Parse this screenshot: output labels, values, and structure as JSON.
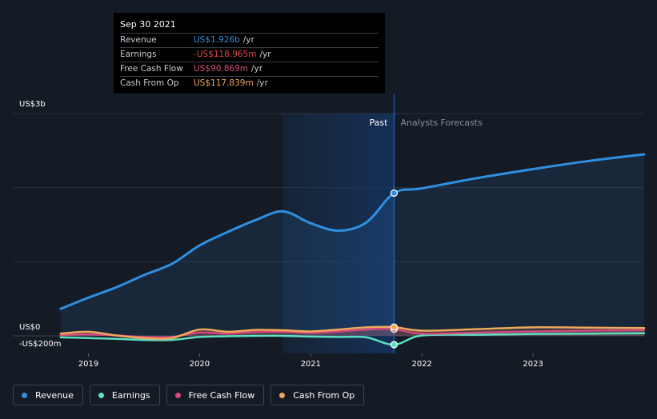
{
  "chart_data": {
    "type": "line",
    "x_unit": "year",
    "xlim": [
      2018.55,
      2024.0
    ],
    "ylim": [
      -200,
      3000
    ],
    "y_unit": "US$m",
    "y_tick_labels": [
      {
        "value": 3000,
        "label": "US$3b"
      },
      {
        "value": 0,
        "label": "US$0"
      },
      {
        "value": -200,
        "label": "-US$200m"
      }
    ],
    "x_tick_labels": [
      {
        "value": 2019,
        "label": "2019"
      },
      {
        "value": 2020,
        "label": "2020"
      },
      {
        "value": 2021,
        "label": "2021"
      },
      {
        "value": 2022,
        "label": "2022"
      },
      {
        "value": 2023,
        "label": "2023"
      }
    ],
    "past_label": "Past",
    "forecast_label": "Analysts Forecasts",
    "divider_x": 2021.75,
    "highlight_start_x": 2020.75,
    "series": [
      {
        "name": "Revenue",
        "color": "#2f8fe0",
        "values": [
          [
            2018.75,
            365
          ],
          [
            2019.0,
            515
          ],
          [
            2019.25,
            655
          ],
          [
            2019.5,
            820
          ],
          [
            2019.75,
            970
          ],
          [
            2020.0,
            1220
          ],
          [
            2020.25,
            1400
          ],
          [
            2020.5,
            1560
          ],
          [
            2020.75,
            1680
          ],
          [
            2021.0,
            1520
          ],
          [
            2021.25,
            1420
          ],
          [
            2021.5,
            1530
          ],
          [
            2021.75,
            1926
          ],
          [
            2022.0,
            1990
          ],
          [
            2022.5,
            2130
          ],
          [
            2023.0,
            2250
          ],
          [
            2023.5,
            2360
          ],
          [
            2024.0,
            2450
          ]
        ]
      },
      {
        "name": "Earnings",
        "color": "#5ee0c4",
        "values": [
          [
            2018.75,
            -20
          ],
          [
            2019.0,
            -30
          ],
          [
            2019.25,
            -40
          ],
          [
            2019.5,
            -55
          ],
          [
            2019.75,
            -55
          ],
          [
            2020.0,
            -15
          ],
          [
            2020.25,
            -5
          ],
          [
            2020.5,
            0
          ],
          [
            2020.75,
            0
          ],
          [
            2021.0,
            -10
          ],
          [
            2021.25,
            -15
          ],
          [
            2021.5,
            -20
          ],
          [
            2021.75,
            -118.965
          ],
          [
            2022.0,
            5
          ],
          [
            2022.5,
            15
          ],
          [
            2023.0,
            25
          ],
          [
            2023.5,
            30
          ],
          [
            2024.0,
            35
          ]
        ]
      },
      {
        "name": "Free Cash Flow",
        "color": "#d6487e",
        "values": [
          [
            2018.75,
            10
          ],
          [
            2019.0,
            20
          ],
          [
            2019.25,
            5
          ],
          [
            2019.5,
            -15
          ],
          [
            2019.75,
            -15
          ],
          [
            2020.0,
            45
          ],
          [
            2020.25,
            30
          ],
          [
            2020.5,
            50
          ],
          [
            2020.75,
            55
          ],
          [
            2021.0,
            40
          ],
          [
            2021.25,
            60
          ],
          [
            2021.5,
            85
          ],
          [
            2021.75,
            90.869
          ],
          [
            2022.0,
            30
          ],
          [
            2022.5,
            45
          ],
          [
            2023.0,
            60
          ],
          [
            2023.5,
            70
          ],
          [
            2024.0,
            75
          ]
        ]
      },
      {
        "name": "Cash From Op",
        "color": "#f2a85b",
        "values": [
          [
            2018.75,
            30
          ],
          [
            2019.0,
            55
          ],
          [
            2019.25,
            5
          ],
          [
            2019.5,
            -30
          ],
          [
            2019.75,
            -30
          ],
          [
            2020.0,
            85
          ],
          [
            2020.25,
            55
          ],
          [
            2020.5,
            80
          ],
          [
            2020.75,
            75
          ],
          [
            2021.0,
            60
          ],
          [
            2021.25,
            85
          ],
          [
            2021.5,
            115
          ],
          [
            2021.75,
            117.839
          ],
          [
            2022.0,
            70
          ],
          [
            2022.5,
            90
          ],
          [
            2023.0,
            115
          ],
          [
            2023.5,
            110
          ],
          [
            2024.0,
            105
          ]
        ]
      }
    ],
    "tooltip": {
      "date": "Sep 30 2021",
      "rows": [
        {
          "label": "Revenue",
          "value": "US$1.926b",
          "unit": "/yr",
          "color": "#2f8fe0"
        },
        {
          "label": "Earnings",
          "value": "-US$118.965m",
          "unit": "/yr",
          "color": "#e04848"
        },
        {
          "label": "Free Cash Flow",
          "value": "US$90.869m",
          "unit": "/yr",
          "color": "#d6487e"
        },
        {
          "label": "Cash From Op",
          "value": "US$117.839m",
          "unit": "/yr",
          "color": "#f2a85b"
        }
      ]
    },
    "legend": [
      {
        "name": "Revenue",
        "color": "#2f8fe0"
      },
      {
        "name": "Earnings",
        "color": "#5ee0c4"
      },
      {
        "name": "Free Cash Flow",
        "color": "#d6487e"
      },
      {
        "name": "Cash From Op",
        "color": "#f2a85b"
      }
    ]
  }
}
